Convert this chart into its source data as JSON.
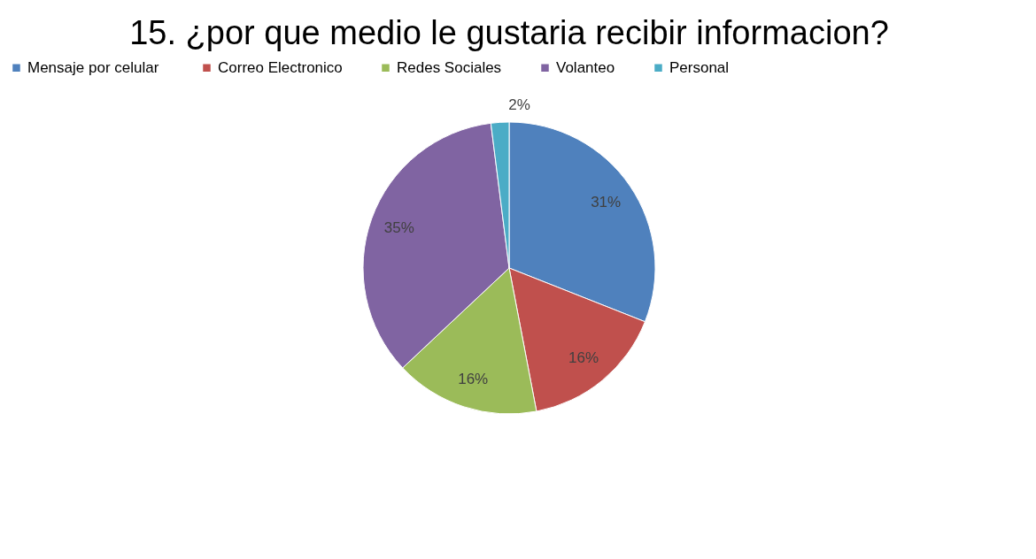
{
  "chart_data": {
    "type": "pie",
    "title": "15. ¿por que medio le gustaria recibir informacion?",
    "categories": [
      "Mensaje por  celular",
      "Correo Electronico",
      "Redes Sociales",
      "Volanteo",
      "Personal"
    ],
    "values": [
      31,
      16,
      16,
      35,
      2
    ],
    "value_labels": [
      "31%",
      "16%",
      "16%",
      "35%",
      "2%"
    ],
    "colors": [
      "#4f81bd",
      "#c0504d",
      "#9bbb59",
      "#8064a2",
      "#4bacc6"
    ],
    "legend": "top"
  }
}
